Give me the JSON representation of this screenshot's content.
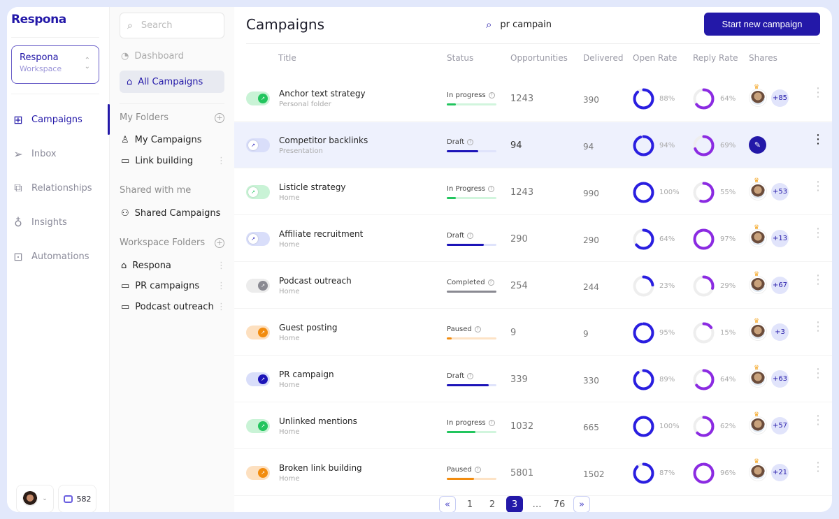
{
  "brand": "Respona",
  "workspace": {
    "name": "Respona",
    "sub": "Workspace"
  },
  "nav": [
    {
      "label": "Campaigns",
      "icon": "grid-icon",
      "active": true
    },
    {
      "label": "Inbox",
      "icon": "send-icon"
    },
    {
      "label": "Relationships",
      "icon": "chat-icon"
    },
    {
      "label": "Insights",
      "icon": "lightbulb-icon"
    },
    {
      "label": "Automations",
      "icon": "robot-icon"
    }
  ],
  "footer": {
    "credits": "582"
  },
  "side2": {
    "search_placeholder": "Search",
    "dashboard": "Dashboard",
    "all_campaigns": "All Campaigns",
    "my_folders": "My Folders",
    "my_items": [
      "My Campaigns",
      "Link building"
    ],
    "shared_head": "Shared with me",
    "shared_items": [
      "Shared Campaigns"
    ],
    "ws_head": "Workspace Folders",
    "ws_items": [
      "Respona",
      "PR campaigns",
      "Podcast outreach"
    ]
  },
  "main": {
    "title": "Campaigns",
    "search_value": "pr campain",
    "start_button": "Start new campaign",
    "columns": [
      "Title",
      "Status",
      "Opportunities",
      "Delivered",
      "Open Rate",
      "Reply Rate",
      "Shares"
    ]
  },
  "colors": {
    "accent": "#2318a8",
    "open_ring": "#2a1ee0",
    "reply_ring": "#8b2be2",
    "in_progress": "#22c55e",
    "draft": "#1c14b8",
    "completed": "#8a8a92",
    "paused": "#f28c0f"
  },
  "rows": [
    {
      "name": "Anchor text strategy",
      "folder": "Personal folder",
      "status": "In progress",
      "kind": "in_progress",
      "progress": 18,
      "on": true,
      "opportunities": "1243",
      "delivered": "390",
      "open": 88,
      "reply": 64,
      "shares": "+85"
    },
    {
      "name": "Competitor backlinks",
      "folder": "Presentation",
      "status": "Draft",
      "kind": "draft",
      "progress": 63,
      "on": false,
      "opportunities": "94",
      "delivered": "94",
      "open": 94,
      "reply": 69,
      "shares": null,
      "highlight": true
    },
    {
      "name": "Listicle strategy",
      "folder": "Home",
      "status": "In Progress",
      "kind": "in_progress",
      "progress": 18,
      "on": false,
      "opportunities": "1243",
      "delivered": "990",
      "open": 100,
      "reply": 55,
      "shares": "+53"
    },
    {
      "name": "Affiliate recruitment",
      "folder": "Home",
      "status": "Draft",
      "kind": "draft",
      "progress": 75,
      "on": false,
      "opportunities": "290",
      "delivered": "290",
      "open": 64,
      "reply": 97,
      "shares": "+13"
    },
    {
      "name": "Podcast outreach",
      "folder": "Home",
      "status": "Completed",
      "kind": "completed",
      "progress": 100,
      "on": true,
      "opportunities": "254",
      "delivered": "244",
      "open": 23,
      "reply": 29,
      "shares": "+67"
    },
    {
      "name": "Guest posting",
      "folder": "Home",
      "status": "Paused",
      "kind": "paused",
      "progress": 10,
      "on": true,
      "opportunities": "9",
      "delivered": "9",
      "open": 95,
      "reply": 15,
      "shares": "+3"
    },
    {
      "name": "PR campaign",
      "folder": "Home",
      "status": "Draft",
      "kind": "draft",
      "progress": 85,
      "on": true,
      "opportunities": "339",
      "delivered": "330",
      "open": 89,
      "reply": 64,
      "shares": "+63"
    },
    {
      "name": "Unlinked mentions",
      "folder": "Home",
      "status": "In progress",
      "kind": "in_progress",
      "progress": 58,
      "on": true,
      "opportunities": "1032",
      "delivered": "665",
      "open": 100,
      "reply": 62,
      "shares": "+57"
    },
    {
      "name": "Broken link building",
      "folder": "Home",
      "status": "Paused",
      "kind": "paused",
      "progress": 55,
      "on": true,
      "opportunities": "5801",
      "delivered": "1502",
      "open": 87,
      "reply": 96,
      "shares": "+21"
    }
  ],
  "pagination": {
    "prev": "«",
    "pages": [
      "1",
      "2",
      "3",
      "…",
      "76"
    ],
    "current": "3",
    "next": "»"
  }
}
